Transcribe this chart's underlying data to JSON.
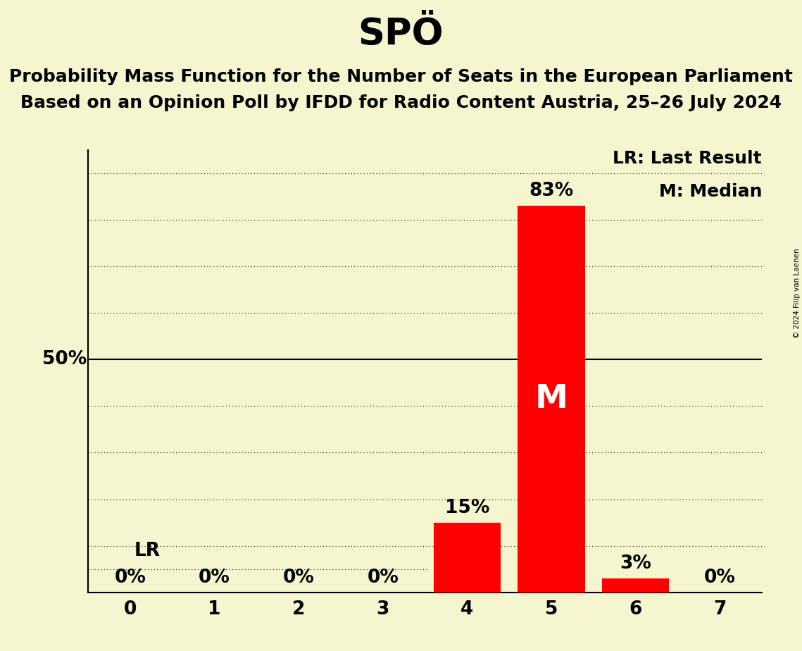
{
  "title": "SPÖ",
  "subtitle_line1": "Probability Mass Function for the Number of Seats in the European Parliament",
  "subtitle_line2": "Based on an Opinion Poll by IFDD for Radio Content Austria, 25–26 July 2024",
  "copyright": "© 2024 Filip van Laenen",
  "categories": [
    0,
    1,
    2,
    3,
    4,
    5,
    6,
    7
  ],
  "values": [
    0,
    0,
    0,
    0,
    15,
    83,
    3,
    0
  ],
  "bar_color": "#FF0000",
  "background_color": "#F5F5D0",
  "median_seat": 5,
  "lr_level": 5,
  "ylim": [
    0,
    95
  ],
  "legend_lr": "LR: Last Result",
  "legend_m": "M: Median",
  "title_fontsize": 38,
  "subtitle_fontsize": 18,
  "label_fontsize": 19,
  "tick_fontsize": 19,
  "legend_fontsize": 18,
  "fifty_label": "50%",
  "lr_label": "LR"
}
